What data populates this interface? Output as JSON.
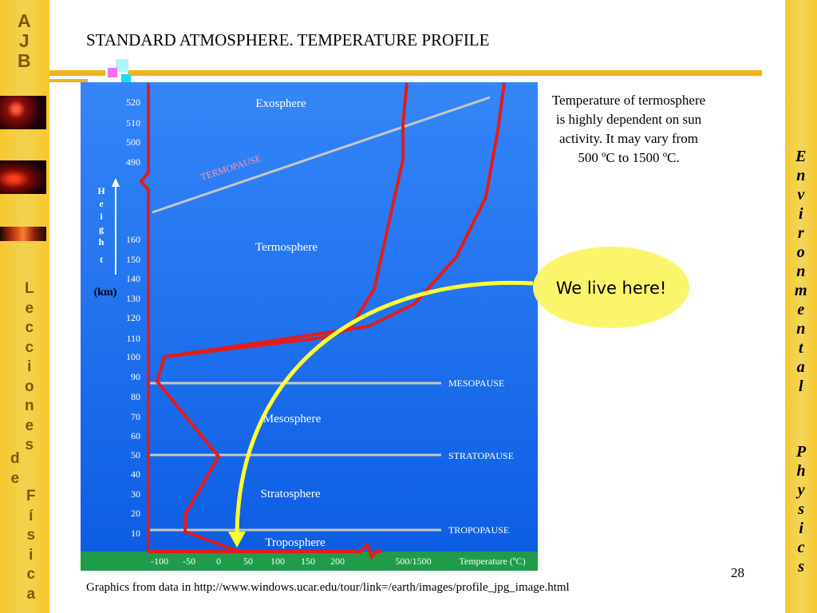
{
  "sidebar": {
    "logo_letters": [
      "A",
      "J",
      "B"
    ],
    "course_letters": [
      "L",
      "e",
      "c",
      "c",
      "i",
      "o",
      "n",
      "e",
      "s"
    ],
    "de_letters": [
      "d",
      "e"
    ],
    "fisica_letters": [
      "F",
      "í",
      "s",
      "i",
      "c",
      "a"
    ]
  },
  "right_sidebar": {
    "environmental_letters": [
      "E",
      "n",
      "v",
      "i",
      "r",
      "o",
      "n",
      "m",
      "e",
      "n",
      "t",
      "a",
      "l"
    ],
    "physics_letters": [
      "P",
      "h",
      "y",
      "s",
      "i",
      "c",
      "s"
    ]
  },
  "slide": {
    "title": "STANDARD ATMOSPHERE. TEMPERATURE PROFILE",
    "note": "Temperature of termosphere is highly dependent on sun activity. It may vary from 500 ºC to 1500 ºC.",
    "callout": "We live here!",
    "page_number": "28",
    "credits": "Graphics from data in http://www.windows.ucar.edu/tour/link=/earth/images/profile_jpg_image.html"
  },
  "chart": {
    "y_ticks_lower": [
      "10",
      "20",
      "30",
      "40",
      "50",
      "60",
      "70",
      "80",
      "90",
      "100",
      "110",
      "120",
      "130",
      "140",
      "150",
      "160"
    ],
    "y_ticks_upper": [
      "490",
      "500",
      "510",
      "520"
    ],
    "height_letters": [
      "H",
      "e",
      "i",
      "g",
      "h",
      "t"
    ],
    "units": "(km)",
    "x_ticks": [
      "-100",
      "-50",
      "0",
      "50",
      "100",
      "150",
      "200"
    ],
    "x_break_label": "500/1500",
    "x_axis_label": "Temperature (ºC)",
    "layers": {
      "exosphere": "Exosphere",
      "termosphere": "Termosphere",
      "mesosphere": "Mesosphere",
      "stratosphere": "Stratosphere",
      "troposphere": "Troposphere"
    },
    "pauses": {
      "termopause": "TERMOPAUSE",
      "mesopause": "MESOPAUSE",
      "stratopause": "STRATOPAUSE",
      "tropopause": "TROPOPAUSE"
    },
    "colors": {
      "curve": "#e41b1b",
      "pause_line": "#c6c6c6",
      "arrow": "#ffff33",
      "bubble": "#fbf56b",
      "sky_top": "#3586f8",
      "sky_bottom": "#0b5ce3",
      "ground": "#1f9b4a"
    }
  }
}
